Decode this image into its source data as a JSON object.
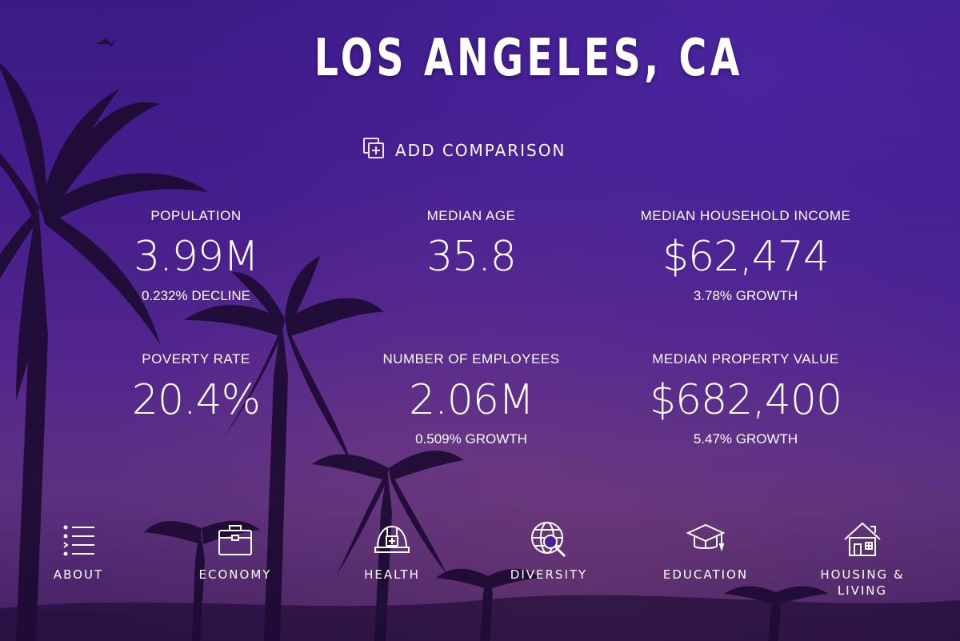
{
  "page": {
    "city_title": "LOS ANGELES, CA"
  },
  "comparison": {
    "label": "ADD COMPARISON",
    "icon": "add-comparison-icon"
  },
  "stats": [
    {
      "label": "POPULATION",
      "value": "3.99M",
      "change": "0.232% DECLINE"
    },
    {
      "label": "MEDIAN AGE",
      "value": "35.8",
      "change": ""
    },
    {
      "label": "MEDIAN HOUSEHOLD INCOME",
      "value": "$62,474",
      "change": "3.78% GROWTH"
    },
    {
      "label": "POVERTY RATE",
      "value": "20.4%",
      "change": ""
    },
    {
      "label": "NUMBER OF EMPLOYEES",
      "value": "2.06M",
      "change": "0.509% GROWTH"
    },
    {
      "label": "MEDIAN PROPERTY VALUE",
      "value": "$682,400",
      "change": "5.47% GROWTH"
    }
  ],
  "nav": [
    {
      "label": "ABOUT",
      "icon": "list-icon"
    },
    {
      "label": "ECONOMY",
      "icon": "briefcase-icon"
    },
    {
      "label": "HEALTH",
      "icon": "medical-helmet-icon"
    },
    {
      "label": "DIVERSITY",
      "icon": "globe-search-icon"
    },
    {
      "label": "EDUCATION",
      "icon": "graduation-cap-icon"
    },
    {
      "label": "HOUSING & LIVING",
      "icon": "house-icon"
    }
  ],
  "colors": {
    "background_top": "#3d1c8a",
    "background_bottom": "#5e2f7c",
    "text": "#ffffff"
  }
}
